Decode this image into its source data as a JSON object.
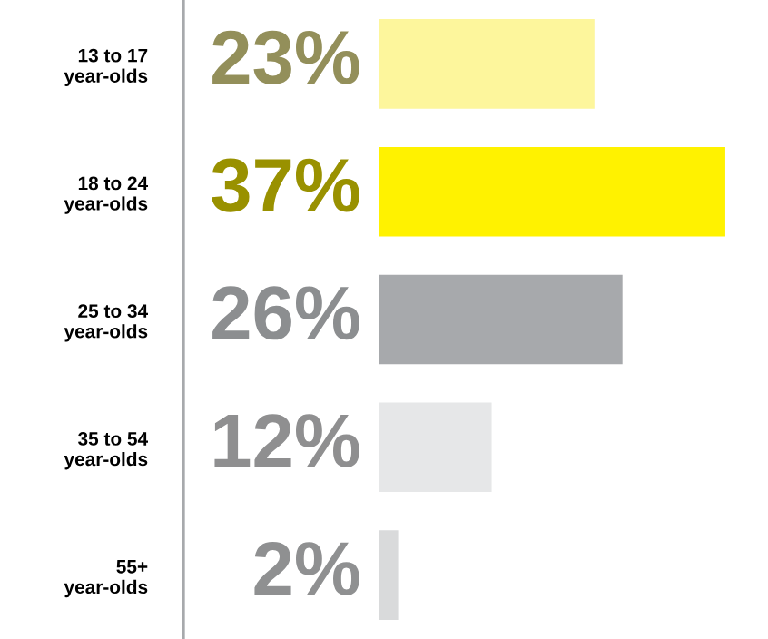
{
  "chart_data": {
    "type": "bar",
    "orientation": "horizontal",
    "categories": [
      "13 to 17\nyear-olds",
      "18 to 24\nyear-olds",
      "25 to 34\nyear-olds",
      "35 to 54\nyear-olds",
      "55+\nyear-olds"
    ],
    "values": [
      23,
      37,
      26,
      12,
      2
    ],
    "colors": [
      "#fdf69c",
      "#fff200",
      "#a7a9ac",
      "#e6e7e8",
      "#d9dadb"
    ],
    "value_labels": [
      "23%",
      "37%",
      "26%",
      "12%",
      "2%"
    ],
    "grid": false,
    "legend": false
  }
}
